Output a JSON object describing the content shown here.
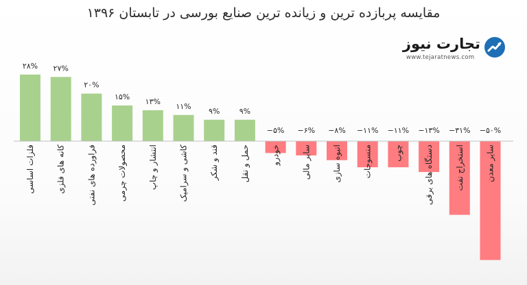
{
  "chart_data": {
    "type": "bar",
    "title": "مقایسه پربازده ترین و زیانده ترین صنایع بورسی در  تابستان ۱۳۹۶",
    "xlabel": "",
    "ylabel": "",
    "ylim": [
      -50,
      28
    ],
    "grid": false,
    "legend": "none",
    "categories": [
      "فلزات اساسی",
      "کانه های فلزی",
      "فراورده های نفتی",
      "محصولات چرمی",
      "انتشار و چاپ",
      "کاشی و سرامیک",
      "قند و شکر",
      "حمل و نقل",
      "خودرو",
      "سایر مالی",
      "انبوه سازی",
      "منسوجات",
      "چوب",
      "دستگاه های برقی",
      "استخراج نفت",
      "سایر معدن"
    ],
    "values": [
      28,
      27,
      20,
      15,
      13,
      11,
      9,
      9,
      -5,
      -6,
      -8,
      -11,
      -11,
      -13,
      -31,
      -50
    ],
    "value_labels": [
      "۲۸%",
      "۲۷%",
      "۲۰%",
      "۱۵%",
      "۱۳%",
      "۱۱%",
      "۹%",
      "۹%",
      "−۵%",
      "−۶%",
      "−۸%",
      "−۱۱%",
      "−۱۱%",
      "−۱۳%",
      "−۳۱%",
      "−۵۰%"
    ],
    "colors": {
      "positive": "#a9d18e",
      "negative": "#ff7c80",
      "axis": "#bfbfbf",
      "text": "#262626"
    }
  },
  "logo": {
    "name": "تجارت نیوز",
    "url": "www.tejaratnews.com",
    "icon": "tejaratnews-logo-icon",
    "colors": {
      "badge": "#1e6fb5",
      "accent": "#e53935"
    }
  }
}
